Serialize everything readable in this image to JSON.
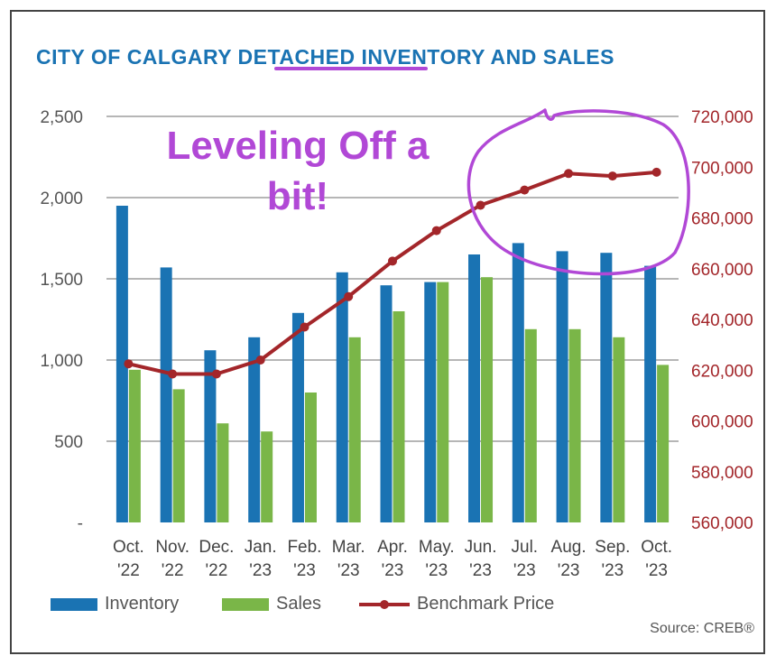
{
  "title": {
    "part1": "CITY OF CALGARY ",
    "highlight": "DETACHED ",
    "part2": "INVENTORY AND SALES"
  },
  "annotation": {
    "line1": "Leveling Off a",
    "line2": "bit!"
  },
  "source": "Source: CREB®",
  "colors": {
    "inventory": "#1a73b3",
    "sales": "#7ab648",
    "benchmark": "#a3262a",
    "title": "#1a73b3",
    "annotation": "#b148d6"
  },
  "chart_data": {
    "type": "bar",
    "categories": [
      [
        "Oct.",
        "'22"
      ],
      [
        "Nov.",
        "'22"
      ],
      [
        "Dec.",
        "'22"
      ],
      [
        "Jan.",
        "'23"
      ],
      [
        "Feb.",
        "'23"
      ],
      [
        "Mar.",
        "'23"
      ],
      [
        "Apr.",
        "'23"
      ],
      [
        "May.",
        "'23"
      ],
      [
        "Jun.",
        "'23"
      ],
      [
        "Jul.",
        "'23"
      ],
      [
        "Aug.",
        "'23"
      ],
      [
        "Sep.",
        "'23"
      ],
      [
        "Oct.",
        "'23"
      ]
    ],
    "series": [
      {
        "name": "Inventory",
        "type": "bar",
        "axis": "left",
        "values": [
          1950,
          1570,
          1060,
          1140,
          1290,
          1540,
          1460,
          1480,
          1650,
          1720,
          1670,
          1660,
          1580
        ]
      },
      {
        "name": "Sales",
        "type": "bar",
        "axis": "left",
        "values": [
          940,
          820,
          610,
          560,
          800,
          1140,
          1300,
          1480,
          1510,
          1190,
          1190,
          1140,
          970
        ]
      },
      {
        "name": "Benchmark Price",
        "type": "line",
        "axis": "right",
        "values": [
          622500,
          618500,
          618500,
          624000,
          637000,
          649000,
          663000,
          675000,
          685000,
          691000,
          697500,
          696500,
          698000
        ]
      }
    ],
    "y_left": {
      "min": 0,
      "max": 2500,
      "ticks": [
        0,
        500,
        1000,
        1500,
        2000,
        2500
      ],
      "tick_labels": [
        "-",
        "500",
        "1,000",
        "1,500",
        "2,000",
        "2,500"
      ]
    },
    "y_right": {
      "min": 560000,
      "max": 720000,
      "ticks": [
        560000,
        580000,
        600000,
        620000,
        640000,
        660000,
        680000,
        700000,
        720000
      ],
      "tick_labels": [
        "560,000",
        "580,000",
        "600,000",
        "620,000",
        "640,000",
        "660,000",
        "680,000",
        "700,000",
        "720,000"
      ]
    },
    "grid": true,
    "legend_position": "bottom"
  },
  "legend": {
    "inventory": "Inventory",
    "sales": "Sales",
    "benchmark": "Benchmark Price"
  }
}
